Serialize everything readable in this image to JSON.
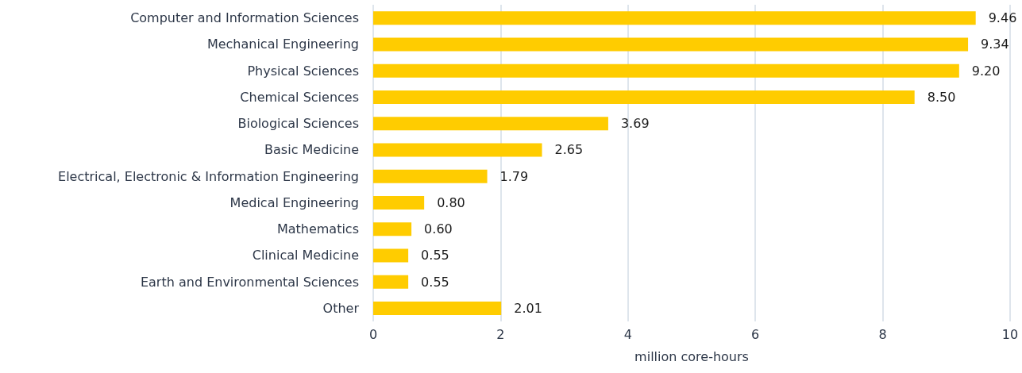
{
  "chart_data": {
    "type": "bar",
    "orientation": "horizontal",
    "xlabel": "million core-hours",
    "categories": [
      "Computer and Information Sciences",
      "Mechanical Engineering",
      "Physical Sciences",
      "Chemical Sciences",
      "Biological Sciences",
      "Basic Medicine",
      "Electrical, Electronic & Information Engineering",
      "Medical Engineering",
      "Mathematics",
      "Clinical Medicine",
      "Earth and Environmental Sciences",
      "Other"
    ],
    "values": [
      9.46,
      9.34,
      9.2,
      8.5,
      3.69,
      2.65,
      1.79,
      0.8,
      0.6,
      0.55,
      0.55,
      2.01
    ],
    "value_labels": [
      "9.46",
      "9.34",
      "9.20",
      "8.50",
      "3.69",
      "2.65",
      "1.79",
      "0.80",
      "0.60",
      "0.55",
      "0.55",
      "2.01"
    ],
    "color": "#ffcc00",
    "xlim": [
      0,
      10
    ],
    "xticks": [
      0,
      2,
      4,
      6,
      8,
      10
    ],
    "grid": "x"
  }
}
